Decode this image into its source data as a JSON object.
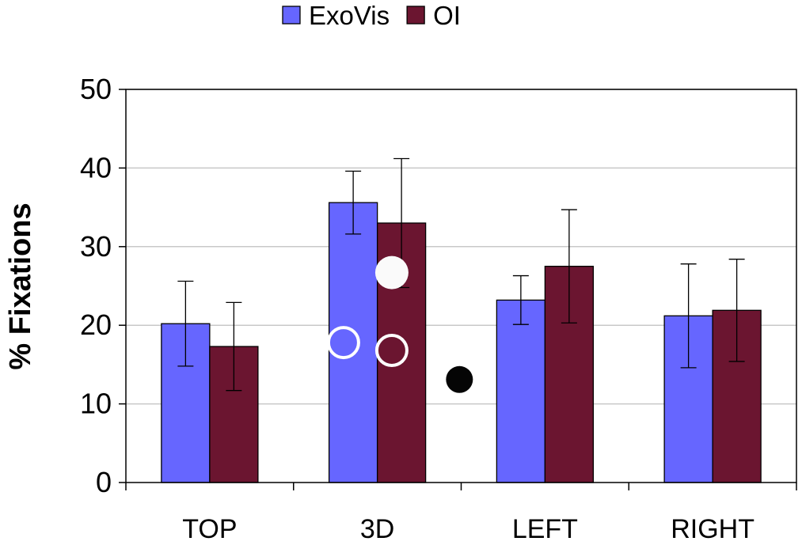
{
  "chart_data": {
    "type": "bar",
    "title": "",
    "xlabel": "",
    "ylabel": "% Fixations",
    "ylim": [
      0,
      50
    ],
    "yticks": [
      0,
      10,
      20,
      30,
      40,
      50
    ],
    "grid": true,
    "legend_position": "top-center",
    "categories": [
      "TOP",
      "3D",
      "LEFT",
      "RIGHT"
    ],
    "series": [
      {
        "name": "ExoVis",
        "color": "#6666ff",
        "values": [
          20.2,
          35.6,
          23.2,
          21.2
        ],
        "error": [
          5.4,
          4.0,
          3.1,
          6.6
        ]
      },
      {
        "name": "OI",
        "color": "#6b1530",
        "values": [
          17.3,
          33.0,
          27.5,
          21.9
        ],
        "error": [
          5.6,
          8.2,
          7.2,
          6.5
        ]
      }
    ],
    "markers": [
      {
        "category": "3D",
        "y": 17.8,
        "style": "hollow-white",
        "offset": -0.7
      },
      {
        "category": "3D",
        "y": 16.8,
        "style": "hollow-white",
        "offset": 0.3
      },
      {
        "category": "3D",
        "y": 26.7,
        "style": "filled-white",
        "offset": 0.3
      },
      {
        "category": "3D",
        "y": 13.1,
        "style": "filled-black",
        "offset": 1.7
      }
    ]
  }
}
